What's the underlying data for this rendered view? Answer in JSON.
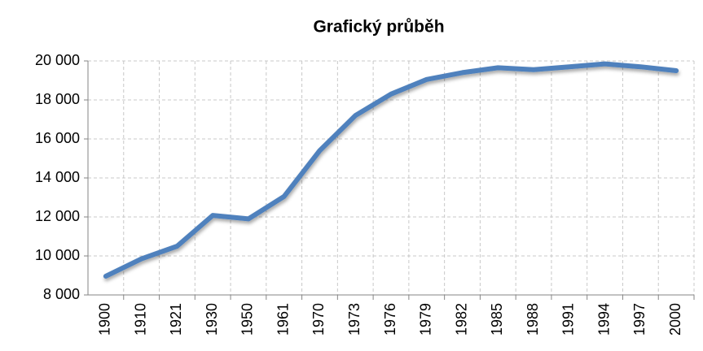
{
  "chart_data": {
    "type": "line",
    "title": "Grafický průběh",
    "categories": [
      "1900",
      "1910",
      "1921",
      "1930",
      "1950",
      "1961",
      "1970",
      "1973",
      "1976",
      "1979",
      "1982",
      "1985",
      "1988",
      "1991",
      "1994",
      "1997",
      "2000"
    ],
    "series": [
      {
        "name": null,
        "color": "#4f81bd",
        "values": [
          8960,
          9850,
          10500,
          12080,
          11900,
          13050,
          15400,
          17200,
          18300,
          19050,
          19400,
          19650,
          19550,
          19700,
          19850,
          19700,
          19500
        ]
      }
    ],
    "ylim": [
      8000,
      20000
    ],
    "yticks": [
      {
        "value": 8000,
        "label": "8 000"
      },
      {
        "value": 10000,
        "label": "10 000"
      },
      {
        "value": 12000,
        "label": "12 000"
      },
      {
        "value": 14000,
        "label": "14 000"
      },
      {
        "value": 16000,
        "label": "16 000"
      },
      {
        "value": 18000,
        "label": "18 000"
      },
      {
        "value": 20000,
        "label": "20 000"
      }
    ],
    "grid": true
  }
}
